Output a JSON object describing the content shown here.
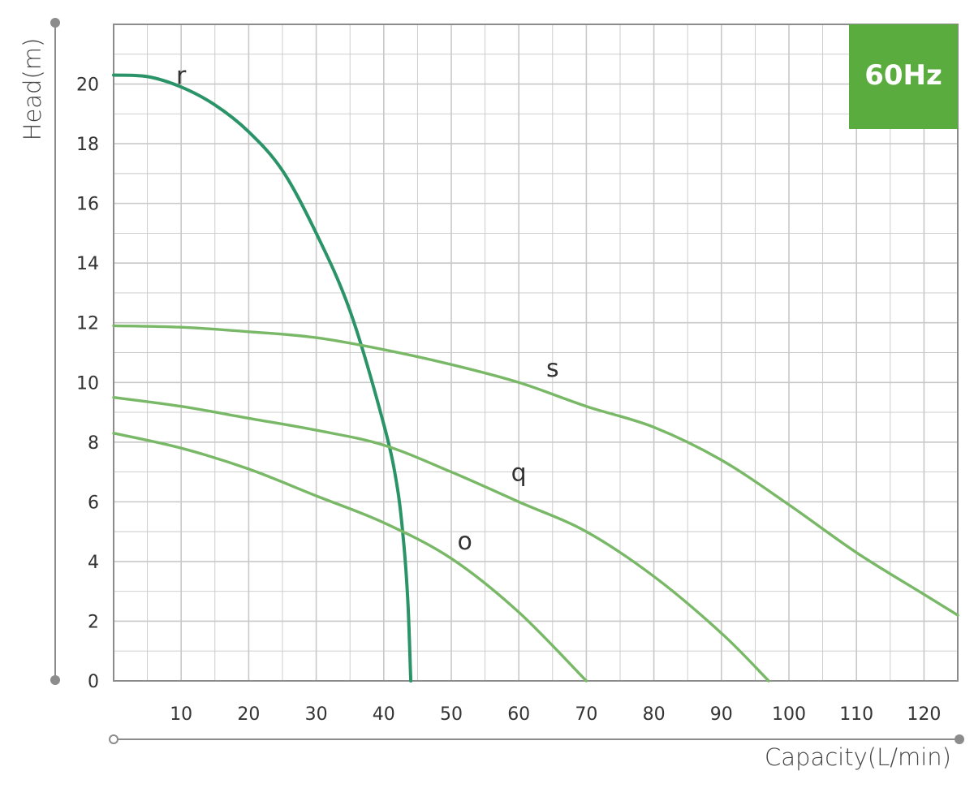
{
  "chart_data": {
    "type": "line",
    "badge": "60Hz",
    "xlabel": "Capacity(L/min)",
    "ylabel": "Head(m)",
    "xlim": [
      0,
      125
    ],
    "ylim": [
      0,
      22
    ],
    "x_ticks": [
      10,
      20,
      30,
      40,
      50,
      60,
      70,
      80,
      90,
      100,
      110,
      120
    ],
    "y_ticks": [
      0,
      2,
      4,
      6,
      8,
      10,
      12,
      14,
      16,
      18,
      20
    ],
    "grid": true,
    "colors": {
      "r": "#2a9468",
      "o": "#78b866",
      "q": "#78b866",
      "s": "#78b866",
      "badge": "#5aac3e",
      "grid": "#c8c8c8",
      "axis": "#8c8c8c"
    },
    "series": [
      {
        "name": "r",
        "label_at": [
          10,
          20
        ],
        "points": [
          [
            0,
            20.3
          ],
          [
            5,
            20.25
          ],
          [
            10,
            19.9
          ],
          [
            15,
            19.3
          ],
          [
            20,
            18.4
          ],
          [
            25,
            17.1
          ],
          [
            30,
            15.0
          ],
          [
            35,
            12.4
          ],
          [
            40,
            8.6
          ],
          [
            42,
            6.5
          ],
          [
            43,
            4.5
          ],
          [
            43.6,
            2.5
          ],
          [
            44,
            0
          ]
        ]
      },
      {
        "name": "s",
        "label_at": [
          65,
          10.2
        ],
        "points": [
          [
            0,
            11.9
          ],
          [
            10,
            11.85
          ],
          [
            20,
            11.7
          ],
          [
            30,
            11.5
          ],
          [
            40,
            11.1
          ],
          [
            50,
            10.6
          ],
          [
            60,
            10.0
          ],
          [
            70,
            9.2
          ],
          [
            80,
            8.5
          ],
          [
            90,
            7.4
          ],
          [
            100,
            5.9
          ],
          [
            110,
            4.3
          ],
          [
            120,
            2.9
          ],
          [
            125,
            2.2
          ]
        ]
      },
      {
        "name": "q",
        "label_at": [
          60,
          6.7
        ],
        "points": [
          [
            0,
            9.5
          ],
          [
            10,
            9.2
          ],
          [
            20,
            8.8
          ],
          [
            30,
            8.4
          ],
          [
            40,
            7.9
          ],
          [
            50,
            7.0
          ],
          [
            60,
            6.0
          ],
          [
            70,
            5.0
          ],
          [
            80,
            3.5
          ],
          [
            90,
            1.6
          ],
          [
            97,
            0
          ]
        ]
      },
      {
        "name": "o",
        "label_at": [
          52,
          4.4
        ],
        "points": [
          [
            0,
            8.3
          ],
          [
            10,
            7.8
          ],
          [
            20,
            7.1
          ],
          [
            30,
            6.2
          ],
          [
            40,
            5.3
          ],
          [
            50,
            4.1
          ],
          [
            60,
            2.3
          ],
          [
            70,
            0
          ]
        ]
      }
    ]
  }
}
